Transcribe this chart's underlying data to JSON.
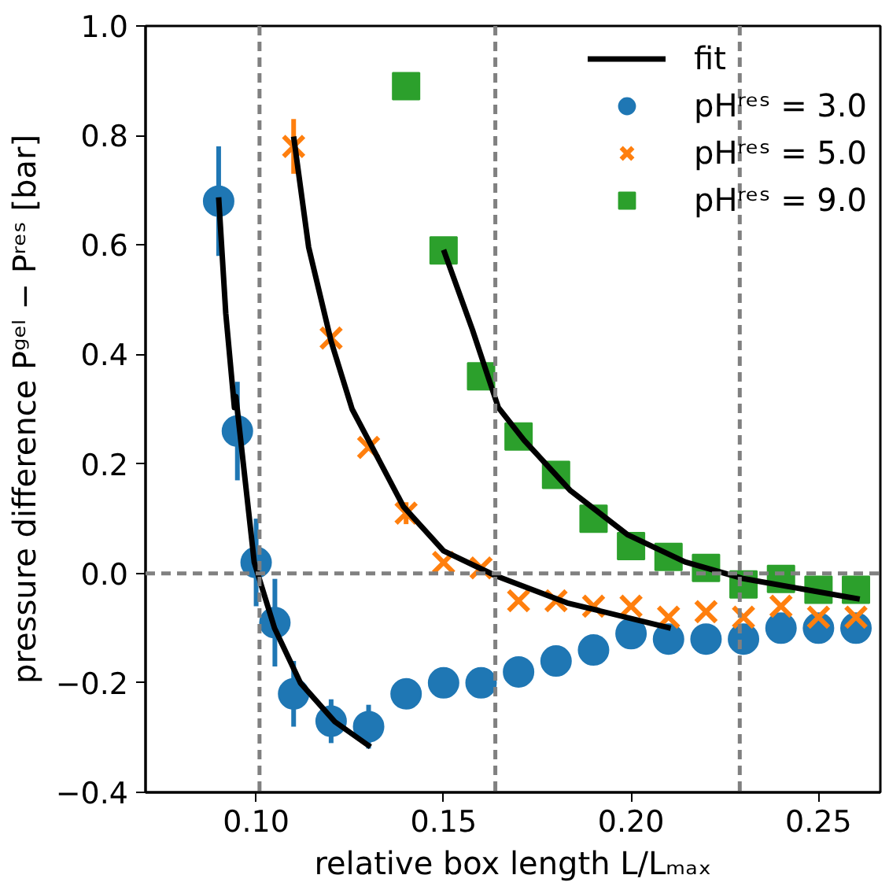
{
  "chart_data": {
    "type": "scatter",
    "xlabel": "relative box length L/Lₘₐₓ",
    "ylabel": "pressure difference Pᵍᵉˡ − Pʳᵉˢ [bar]",
    "xlim": [
      0.0705,
      0.2665
    ],
    "ylim": [
      -0.4,
      1.0
    ],
    "xticks": [
      {
        "value": 0.1,
        "label": "0.10"
      },
      0.15,
      {
        "value": 0.2,
        "label": "0.20"
      },
      0.25
    ],
    "yticks": [
      {
        "value": -0.4,
        "label": "−0.4"
      },
      {
        "value": -0.2,
        "label": "−0.2"
      },
      {
        "value": 0,
        "label": "0.0"
      },
      0.2,
      0.4,
      0.6,
      0.8,
      {
        "value": 1,
        "label": "1.0"
      }
    ],
    "grid": false,
    "legend": "top right",
    "ref_lines": [
      {
        "axis": "x",
        "value": 0.1009,
        "color": "#808080",
        "line_style": "dashed"
      },
      {
        "axis": "x",
        "value": 0.1638,
        "color": "#808080",
        "line_style": "dashed"
      },
      {
        "axis": "x",
        "value": 0.229,
        "color": "#808080",
        "line_style": "dashed"
      },
      {
        "axis": "y",
        "value": 0,
        "color": "#808080",
        "line_style": "dashed"
      }
    ],
    "series": [
      {
        "name": "fit",
        "type": "line",
        "color": "#000000",
        "x": [
          0.09,
          0.0919,
          0.0942,
          0.0946,
          0.0995,
          0.1049,
          0.1118,
          0.121,
          0.1305
        ],
        "values": [
          0.687,
          0.475,
          0.303,
          0.323,
          0.02,
          -0.1,
          -0.2,
          -0.271,
          -0.317
        ]
      },
      {
        "type": "line",
        "color": "#000000",
        "x": [
          0.11,
          0.114,
          0.12,
          0.1256,
          0.13,
          0.1393,
          0.15,
          0.1638,
          0.183,
          0.2106
        ],
        "values": [
          0.798,
          0.596,
          0.424,
          0.3,
          0.243,
          0.122,
          0.041,
          -0.004,
          -0.054,
          -0.1
        ]
      },
      {
        "type": "line",
        "color": "#000000",
        "x": [
          0.15,
          0.1577,
          0.1646,
          0.1715,
          0.1837,
          0.199,
          0.2144,
          0.2296,
          0.261
        ],
        "values": [
          0.591,
          0.445,
          0.303,
          0.243,
          0.152,
          0.071,
          0.021,
          -0.009,
          -0.047
        ]
      },
      {
        "name": "pHʳᵉˢ = 3.0",
        "marker": "circle",
        "color": "#1f77b4",
        "x": [
          0.09,
          0.095,
          0.1,
          0.105,
          0.11,
          0.12,
          0.13,
          0.14,
          0.15,
          0.16,
          0.17,
          0.18,
          0.19,
          0.2,
          0.21,
          0.22,
          0.23,
          0.24,
          0.25,
          0.26
        ],
        "values": [
          0.68,
          0.26,
          0.02,
          -0.09,
          -0.22,
          -0.27,
          -0.28,
          -0.22,
          -0.2,
          -0.2,
          -0.18,
          -0.16,
          -0.14,
          -0.11,
          -0.12,
          -0.12,
          -0.12,
          -0.1,
          -0.1,
          -0.1
        ],
        "errors": [
          0.1,
          0.09,
          0.08,
          0.08,
          0.06,
          0.04,
          0.04,
          null,
          null,
          null,
          null,
          null,
          null,
          null,
          null,
          null,
          null,
          null,
          null,
          null
        ]
      },
      {
        "name": "pHʳᵉˢ = 5.0",
        "marker": "cross",
        "color": "#ff7f0e",
        "x": [
          0.11,
          0.12,
          0.13,
          0.14,
          0.15,
          0.16,
          0.17,
          0.18,
          0.19,
          0.2,
          0.21,
          0.22,
          0.23,
          0.24,
          0.25,
          0.26
        ],
        "values": [
          0.78,
          0.43,
          0.23,
          0.11,
          0.02,
          0.01,
          -0.05,
          -0.05,
          -0.06,
          -0.06,
          -0.08,
          -0.07,
          -0.08,
          -0.06,
          -0.08,
          -0.08
        ],
        "errors": [
          0.05,
          null,
          null,
          0.02,
          null,
          null,
          null,
          null,
          null,
          null,
          null,
          null,
          null,
          null,
          null,
          null
        ]
      },
      {
        "name": "pHʳᵉˢ = 9.0",
        "marker": "square",
        "color": "#2ca02c",
        "x": [
          0.14,
          0.15,
          0.16,
          0.17,
          0.18,
          0.19,
          0.2,
          0.21,
          0.22,
          0.23,
          0.24,
          0.25,
          0.26
        ],
        "values": [
          0.89,
          0.59,
          0.36,
          0.25,
          0.18,
          0.1,
          0.05,
          0.03,
          0.01,
          -0.02,
          -0.01,
          -0.03,
          -0.03
        ]
      }
    ]
  }
}
